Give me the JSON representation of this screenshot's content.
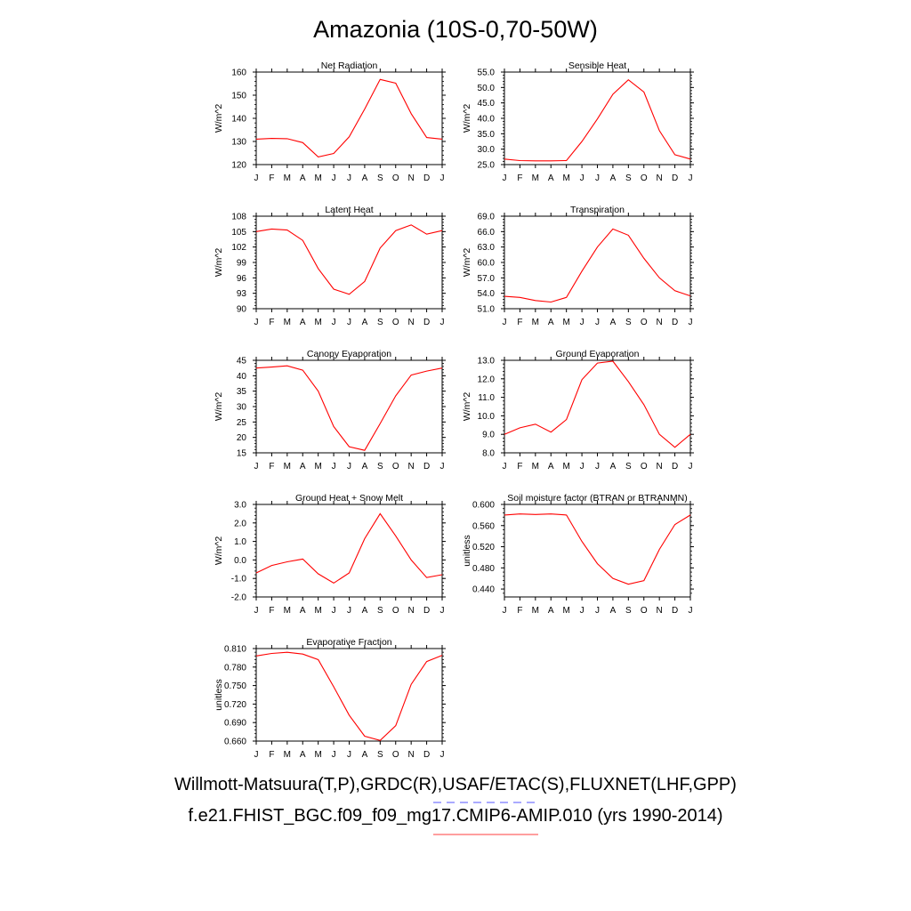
{
  "title": "Amazonia (10S-0,70-50W)",
  "footer": {
    "line1": "Willmott-Matsuura(T,P),GRDC(R),USAF/ETAC(S),FLUXNET(LHF,GPP)",
    "line2": "f.e21.FHIST_BGC.f09_f09_mg17.CMIP6-AMIP.010 (yrs 1990-2014)"
  },
  "colors": {
    "series": "#ff0000",
    "dash_underline": "#7777ff",
    "solid_underline": "#ff6666"
  },
  "chart_data": [
    {
      "type": "line",
      "title": "Net Radiation",
      "ylabel": "W/m^2",
      "categories": [
        "J",
        "F",
        "M",
        "A",
        "M",
        "J",
        "J",
        "A",
        "S",
        "O",
        "N",
        "D",
        "J"
      ],
      "ylim": [
        120,
        160
      ],
      "yticks": [
        "120",
        "130",
        "140",
        "150",
        "160"
      ],
      "series": [
        {
          "values": [
            131,
            131.3,
            131.2,
            129.5,
            123.3,
            124.8,
            132,
            144,
            156.8,
            155.2,
            142,
            131.7,
            131
          ]
        }
      ]
    },
    {
      "type": "line",
      "title": "Sensible Heat",
      "ylabel": "W/m^2",
      "categories": [
        "J",
        "F",
        "M",
        "A",
        "M",
        "J",
        "J",
        "A",
        "S",
        "O",
        "N",
        "D",
        "J"
      ],
      "ylim": [
        25,
        55
      ],
      "yticks": [
        "25.0",
        "30.0",
        "35.0",
        "40.0",
        "45.0",
        "50.0",
        "55.0"
      ],
      "series": [
        {
          "values": [
            26.8,
            26.3,
            26.2,
            26.2,
            26.3,
            32.5,
            39.8,
            47.8,
            52.5,
            48.5,
            36,
            28.2,
            26.8
          ]
        }
      ]
    },
    {
      "type": "line",
      "title": "Latent Heat",
      "ylabel": "W/m^2",
      "categories": [
        "J",
        "F",
        "M",
        "A",
        "M",
        "J",
        "J",
        "A",
        "S",
        "O",
        "N",
        "D",
        "J"
      ],
      "ylim": [
        90,
        108
      ],
      "yticks": [
        "90",
        "93",
        "96",
        "99",
        "102",
        "105",
        "108"
      ],
      "series": [
        {
          "values": [
            105,
            105.5,
            105.3,
            103.3,
            97.8,
            93.8,
            92.8,
            95.3,
            101.8,
            105.2,
            106.3,
            104.5,
            105.2
          ]
        }
      ]
    },
    {
      "type": "line",
      "title": "Transpiration",
      "ylabel": "W/m^2",
      "categories": [
        "J",
        "F",
        "M",
        "A",
        "M",
        "J",
        "J",
        "A",
        "S",
        "O",
        "N",
        "D",
        "J"
      ],
      "ylim": [
        51,
        69
      ],
      "yticks": [
        "51.0",
        "54.0",
        "57.0",
        "60.0",
        "63.0",
        "66.0",
        "69.0"
      ],
      "series": [
        {
          "values": [
            53.4,
            53.2,
            52.6,
            52.3,
            53.2,
            58.3,
            63,
            66.5,
            65.3,
            60.8,
            57,
            54.5,
            53.5
          ]
        }
      ]
    },
    {
      "type": "line",
      "title": "Canopy Evaporation",
      "ylabel": "W/m^2",
      "categories": [
        "J",
        "F",
        "M",
        "A",
        "M",
        "J",
        "J",
        "A",
        "S",
        "O",
        "N",
        "D",
        "J"
      ],
      "ylim": [
        15,
        45
      ],
      "yticks": [
        "15",
        "20",
        "25",
        "30",
        "35",
        "40",
        "45"
      ],
      "series": [
        {
          "values": [
            42.5,
            42.8,
            43.2,
            41.8,
            35,
            23.5,
            17,
            15.8,
            24.5,
            33.5,
            40.2,
            41.5,
            42.5
          ]
        }
      ]
    },
    {
      "type": "line",
      "title": "Ground Evaporation",
      "ylabel": "W/m^2",
      "categories": [
        "J",
        "F",
        "M",
        "A",
        "M",
        "J",
        "J",
        "A",
        "S",
        "O",
        "N",
        "D",
        "J"
      ],
      "ylim": [
        8,
        13
      ],
      "yticks": [
        "8.0",
        "9.0",
        "10.0",
        "11.0",
        "12.0",
        "13.0"
      ],
      "series": [
        {
          "values": [
            9,
            9.35,
            9.55,
            9.12,
            9.8,
            11.95,
            12.85,
            12.95,
            11.85,
            10.6,
            9,
            8.3,
            9
          ]
        }
      ]
    },
    {
      "type": "line",
      "title": "Ground Heat + Snow Melt",
      "ylabel": "W/m^2",
      "categories": [
        "J",
        "F",
        "M",
        "A",
        "M",
        "J",
        "J",
        "A",
        "S",
        "O",
        "N",
        "D",
        "J"
      ],
      "ylim": [
        -2,
        3
      ],
      "yticks": [
        "-2.0",
        "-1.0",
        "0.0",
        "1.0",
        "2.0",
        "3.0"
      ],
      "series": [
        {
          "values": [
            -0.7,
            -0.3,
            -0.1,
            0.05,
            -0.75,
            -1.25,
            -0.7,
            1.15,
            2.5,
            1.3,
            0,
            -0.95,
            -0.8
          ]
        }
      ]
    },
    {
      "type": "line",
      "title": "Soil moisture factor (BTRAN or BTRANMN)",
      "ylabel": "unitless",
      "categories": [
        "J",
        "F",
        "M",
        "A",
        "M",
        "J",
        "J",
        "A",
        "S",
        "O",
        "N",
        "D",
        "J"
      ],
      "ylim": [
        0.425,
        0.6
      ],
      "yticks": [
        "0.440",
        "0.480",
        "0.520",
        "0.560",
        "0.600"
      ],
      "series": [
        {
          "values": [
            0.58,
            0.582,
            0.581,
            0.582,
            0.58,
            0.53,
            0.488,
            0.46,
            0.449,
            0.456,
            0.515,
            0.562,
            0.58
          ]
        }
      ]
    },
    {
      "type": "line",
      "title": "Evaporative Fraction",
      "ylabel": "unitless",
      "categories": [
        "J",
        "F",
        "M",
        "A",
        "M",
        "J",
        "J",
        "A",
        "S",
        "O",
        "N",
        "D",
        "J"
      ],
      "ylim": [
        0.66,
        0.81
      ],
      "yticks": [
        "0.660",
        "0.690",
        "0.720",
        "0.750",
        "0.780",
        "0.810"
      ],
      "series": [
        {
          "values": [
            0.798,
            0.802,
            0.804,
            0.801,
            0.792,
            0.748,
            0.702,
            0.668,
            0.661,
            0.685,
            0.752,
            0.789,
            0.799
          ]
        }
      ]
    }
  ]
}
